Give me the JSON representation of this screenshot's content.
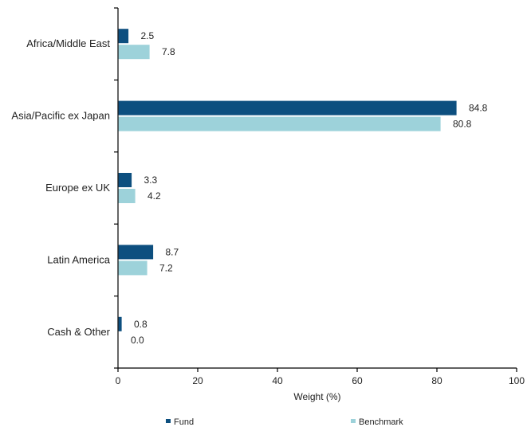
{
  "chart_data": {
    "type": "bar",
    "orientation": "horizontal",
    "categories": [
      "Africa/Middle East",
      "Asia/Pacific ex Japan",
      "Europe ex UK",
      "Latin America",
      "Cash & Other"
    ],
    "series": [
      {
        "name": "Fund",
        "color": "#0d4f7f",
        "values": [
          2.5,
          84.8,
          3.3,
          8.7,
          0.8
        ],
        "value_labels": [
          "2.5",
          "84.8",
          "3.3",
          "8.7",
          "0.8"
        ]
      },
      {
        "name": "Benchmark",
        "color": "#9dd2da",
        "values": [
          7.8,
          80.8,
          4.2,
          7.2,
          0.0
        ],
        "value_labels": [
          "7.8",
          "80.8",
          "4.2",
          "7.2",
          "0.0"
        ]
      }
    ],
    "xlabel": "Weight (%)",
    "xlim": [
      0,
      100
    ],
    "xticks": [
      "0",
      "20",
      "40",
      "60",
      "80",
      "100"
    ],
    "grid": false,
    "legend_position": "bottom"
  }
}
